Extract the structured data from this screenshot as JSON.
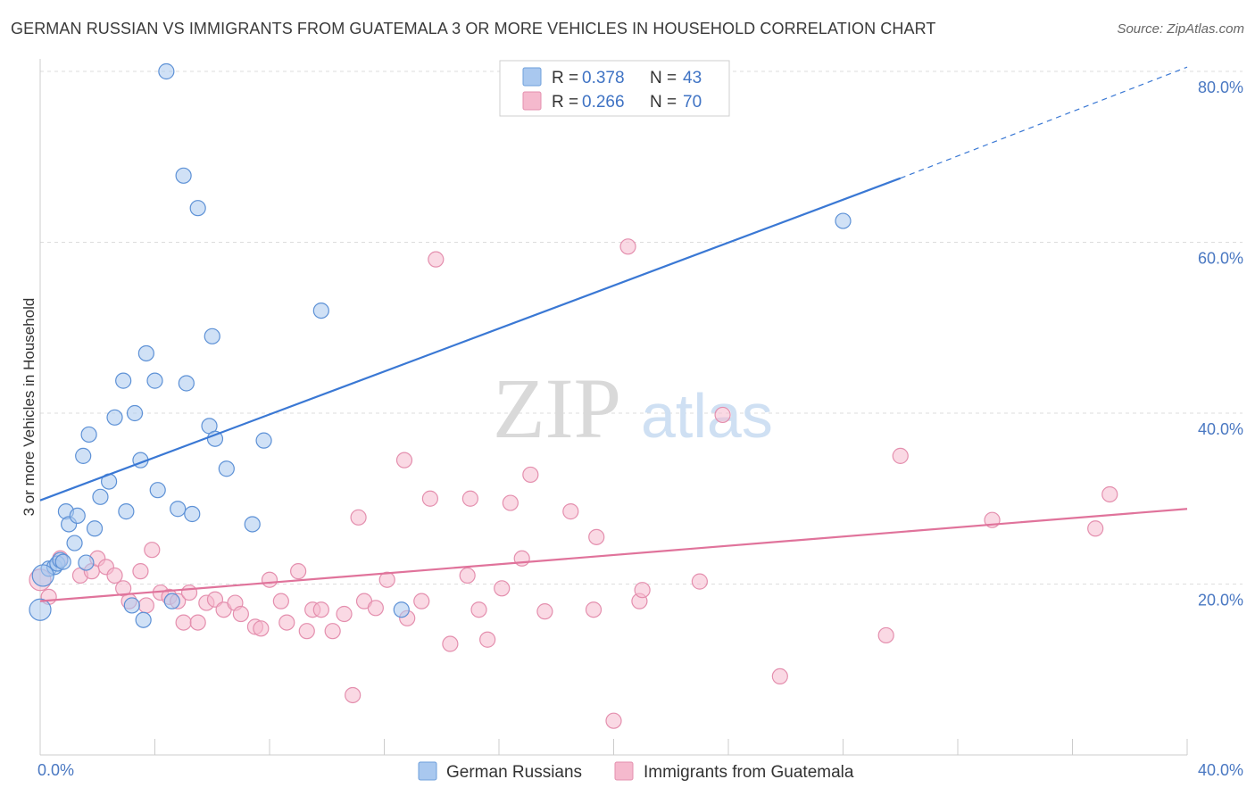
{
  "header": {
    "title": "GERMAN RUSSIAN VS IMMIGRANTS FROM GUATEMALA 3 OR MORE VEHICLES IN HOUSEHOLD CORRELATION CHART",
    "source": "Source: ZipAtlas.com"
  },
  "watermark": {
    "zip": "ZIP",
    "atlas": "atlas"
  },
  "chart_data": {
    "type": "scatter",
    "title": "GERMAN RUSSIAN VS IMMIGRANTS FROM GUATEMALA 3 OR MORE VEHICLES IN HOUSEHOLD CORRELATION CHART",
    "xlabel": "",
    "ylabel": "3 or more Vehicles in Household",
    "xlim": [
      0,
      40
    ],
    "ylim": [
      0,
      80
    ],
    "x_tick_labels": [
      "0.0%",
      "40.0%"
    ],
    "y_ticks": [
      20,
      40,
      60,
      80
    ],
    "y_tick_labels": [
      "20.0%",
      "40.0%",
      "60.0%",
      "80.0%"
    ],
    "grid": "horizontal dashed",
    "legend_position": "top-center",
    "legend": [
      {
        "r_label": "R = ",
        "r": "0.378",
        "n_label": "N = ",
        "n": "43"
      },
      {
        "r_label": "R = ",
        "r": "0.266",
        "n_label": "N = ",
        "n": "70"
      }
    ],
    "bottom_legend": [
      "German Russians",
      "Immigrants from Guatemala"
    ],
    "colors": {
      "blue": "#3a78d4",
      "blue_fill": "#a9c8ef",
      "pink": "#e0739b",
      "pink_fill": "#f5b9cd"
    },
    "series": [
      {
        "name": "German Russians",
        "color": "#3a78d4",
        "trend": {
          "x": [
            0,
            30
          ],
          "y": [
            29.8,
            67.5
          ],
          "dashed_to": [
            40,
            80.5
          ]
        },
        "points": [
          [
            0.0,
            17.0
          ],
          [
            0.3,
            21.8
          ],
          [
            0.5,
            22.0
          ],
          [
            0.6,
            22.4
          ],
          [
            0.7,
            22.8
          ],
          [
            0.8,
            22.6
          ],
          [
            0.9,
            28.5
          ],
          [
            1.0,
            27.0
          ],
          [
            1.2,
            24.8
          ],
          [
            1.3,
            28.0
          ],
          [
            1.5,
            35.0
          ],
          [
            1.6,
            22.5
          ],
          [
            1.7,
            37.5
          ],
          [
            1.9,
            26.5
          ],
          [
            2.1,
            30.2
          ],
          [
            2.4,
            32.0
          ],
          [
            2.6,
            39.5
          ],
          [
            2.9,
            43.8
          ],
          [
            3.0,
            28.5
          ],
          [
            3.2,
            17.5
          ],
          [
            3.3,
            40.0
          ],
          [
            3.5,
            34.5
          ],
          [
            3.6,
            15.8
          ],
          [
            3.7,
            47.0
          ],
          [
            4.0,
            43.8
          ],
          [
            4.1,
            31.0
          ],
          [
            4.4,
            80.0
          ],
          [
            4.6,
            18.0
          ],
          [
            4.8,
            28.8
          ],
          [
            5.0,
            67.8
          ],
          [
            5.1,
            43.5
          ],
          [
            5.3,
            28.2
          ],
          [
            5.5,
            64.0
          ],
          [
            5.9,
            38.5
          ],
          [
            6.0,
            49.0
          ],
          [
            6.1,
            37.0
          ],
          [
            6.5,
            33.5
          ],
          [
            7.4,
            27.0
          ],
          [
            7.8,
            36.8
          ],
          [
            9.8,
            52.0
          ],
          [
            12.6,
            17.0
          ],
          [
            28.0,
            62.5
          ],
          [
            0.1,
            21.0
          ]
        ]
      },
      {
        "name": "Immigrants from Guatemala",
        "color": "#e0739b",
        "trend": {
          "x": [
            0,
            40
          ],
          "y": [
            18.0,
            28.8
          ]
        },
        "points": [
          [
            0.3,
            18.5
          ],
          [
            0.7,
            23.0
          ],
          [
            1.4,
            21.0
          ],
          [
            1.8,
            21.5
          ],
          [
            2.0,
            23.0
          ],
          [
            2.3,
            22.0
          ],
          [
            2.6,
            21.0
          ],
          [
            2.9,
            19.5
          ],
          [
            3.1,
            18.0
          ],
          [
            3.5,
            21.5
          ],
          [
            3.7,
            17.5
          ],
          [
            3.9,
            24.0
          ],
          [
            4.2,
            19.0
          ],
          [
            4.5,
            18.5
          ],
          [
            4.8,
            18.0
          ],
          [
            5.0,
            15.5
          ],
          [
            5.2,
            19.0
          ],
          [
            5.5,
            15.5
          ],
          [
            5.8,
            17.8
          ],
          [
            6.1,
            18.2
          ],
          [
            6.4,
            17.0
          ],
          [
            6.8,
            17.8
          ],
          [
            7.0,
            16.5
          ],
          [
            7.5,
            15.0
          ],
          [
            7.7,
            14.8
          ],
          [
            8.0,
            20.5
          ],
          [
            8.4,
            18.0
          ],
          [
            8.6,
            15.5
          ],
          [
            9.0,
            21.5
          ],
          [
            9.3,
            14.5
          ],
          [
            9.5,
            17.0
          ],
          [
            9.8,
            17.0
          ],
          [
            10.2,
            14.5
          ],
          [
            10.6,
            16.5
          ],
          [
            10.9,
            7.0
          ],
          [
            11.1,
            27.8
          ],
          [
            11.3,
            18.0
          ],
          [
            11.7,
            17.2
          ],
          [
            12.1,
            20.5
          ],
          [
            12.8,
            16.0
          ],
          [
            12.7,
            34.5
          ],
          [
            13.3,
            18.0
          ],
          [
            13.8,
            58.0
          ],
          [
            13.6,
            30.0
          ],
          [
            14.3,
            13.0
          ],
          [
            14.9,
            21.0
          ],
          [
            15.0,
            30.0
          ],
          [
            15.3,
            17.0
          ],
          [
            15.6,
            13.5
          ],
          [
            16.1,
            19.5
          ],
          [
            16.4,
            29.5
          ],
          [
            16.8,
            23.0
          ],
          [
            17.1,
            32.8
          ],
          [
            17.6,
            16.8
          ],
          [
            18.5,
            28.5
          ],
          [
            19.3,
            17.0
          ],
          [
            19.4,
            25.5
          ],
          [
            20.0,
            4.0
          ],
          [
            20.5,
            59.5
          ],
          [
            20.9,
            18.0
          ],
          [
            21.0,
            19.3
          ],
          [
            23.0,
            20.3
          ],
          [
            23.8,
            39.8
          ],
          [
            25.8,
            9.2
          ],
          [
            29.5,
            14.0
          ],
          [
            30.0,
            35.0
          ],
          [
            33.2,
            27.5
          ],
          [
            36.8,
            26.5
          ],
          [
            37.3,
            30.5
          ],
          [
            0.0,
            20.5
          ]
        ]
      }
    ]
  }
}
